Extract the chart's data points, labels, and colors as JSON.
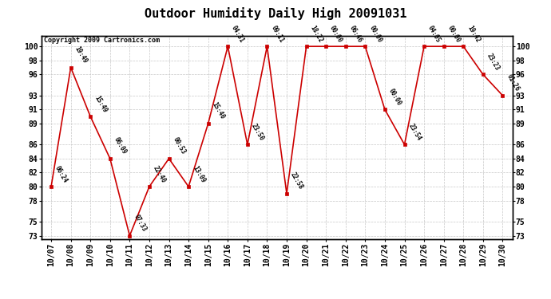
{
  "title": "Outdoor Humidity Daily High 20091031",
  "copyright": "Copyright 2009 Cartronics.com",
  "x_labels": [
    "10/07",
    "10/08",
    "10/09",
    "10/10",
    "10/11",
    "10/12",
    "10/13",
    "10/14",
    "10/15",
    "10/16",
    "10/17",
    "10/18",
    "10/19",
    "10/20",
    "10/21",
    "10/22",
    "10/23",
    "10/24",
    "10/25",
    "10/26",
    "10/27",
    "10/28",
    "10/29",
    "10/30"
  ],
  "y_values": [
    80,
    97,
    90,
    84,
    73,
    80,
    84,
    80,
    89,
    100,
    86,
    100,
    79,
    100,
    100,
    100,
    100,
    91,
    86,
    100,
    100,
    100,
    96,
    93
  ],
  "point_labels": [
    "06:24",
    "19:49",
    "15:49",
    "06:09",
    "07:33",
    "22:40",
    "00:53",
    "13:09",
    "15:40",
    "04:31",
    "23:50",
    "09:11",
    "22:58",
    "18:22",
    "00:00",
    "06:46",
    "00:00",
    "00:00",
    "23:54",
    "04:05",
    "00:00",
    "19:42",
    "23:23",
    "01:26"
  ],
  "yticks": [
    73,
    75,
    78,
    80,
    82,
    84,
    86,
    89,
    91,
    93,
    96,
    98,
    100
  ],
  "line_color": "#cc0000",
  "bg_color": "#ffffff",
  "grid_color": "#c8c8c8",
  "title_fontsize": 11,
  "tick_fontsize": 7,
  "copyright_fontsize": 6,
  "label_fontsize": 5.5,
  "ylim_min": 72.5,
  "ylim_max": 101.5
}
